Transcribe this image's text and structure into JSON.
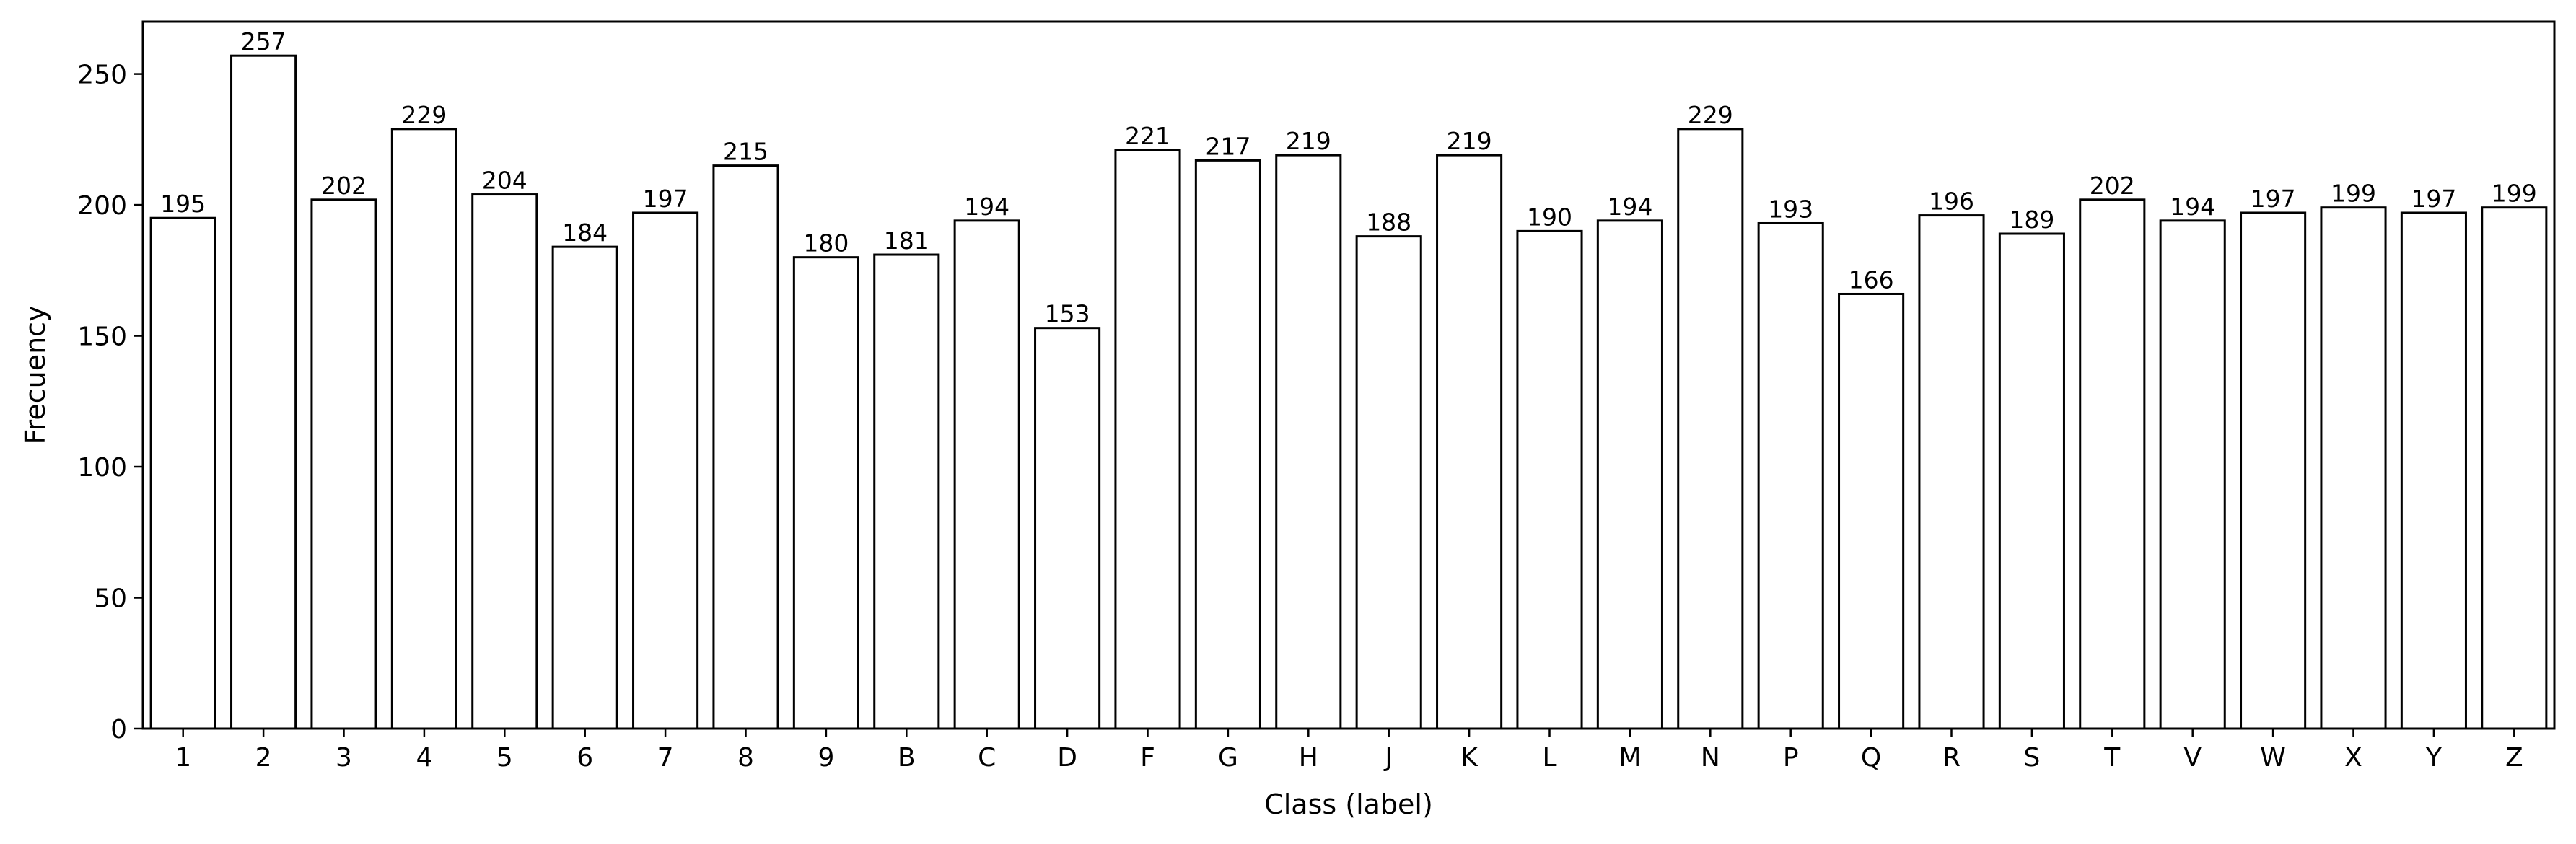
{
  "chart_data": {
    "type": "bar",
    "title": "",
    "xlabel": "Class (label)",
    "ylabel": "Frecuency",
    "categories": [
      "1",
      "2",
      "3",
      "4",
      "5",
      "6",
      "7",
      "8",
      "9",
      "B",
      "C",
      "D",
      "F",
      "G",
      "H",
      "J",
      "K",
      "L",
      "M",
      "N",
      "P",
      "Q",
      "R",
      "S",
      "T",
      "V",
      "W",
      "X",
      "Y",
      "Z"
    ],
    "values": [
      195,
      257,
      202,
      229,
      204,
      184,
      197,
      215,
      180,
      181,
      194,
      153,
      221,
      217,
      219,
      188,
      219,
      190,
      194,
      229,
      193,
      166,
      196,
      189,
      202,
      194,
      197,
      199,
      197,
      199
    ],
    "ylim": [
      0,
      270
    ],
    "yticks": [
      0,
      50,
      100,
      150,
      200,
      250
    ],
    "grid": false,
    "legend": false,
    "bar_fill": "#ffffff",
    "bar_edge": "#000000"
  }
}
